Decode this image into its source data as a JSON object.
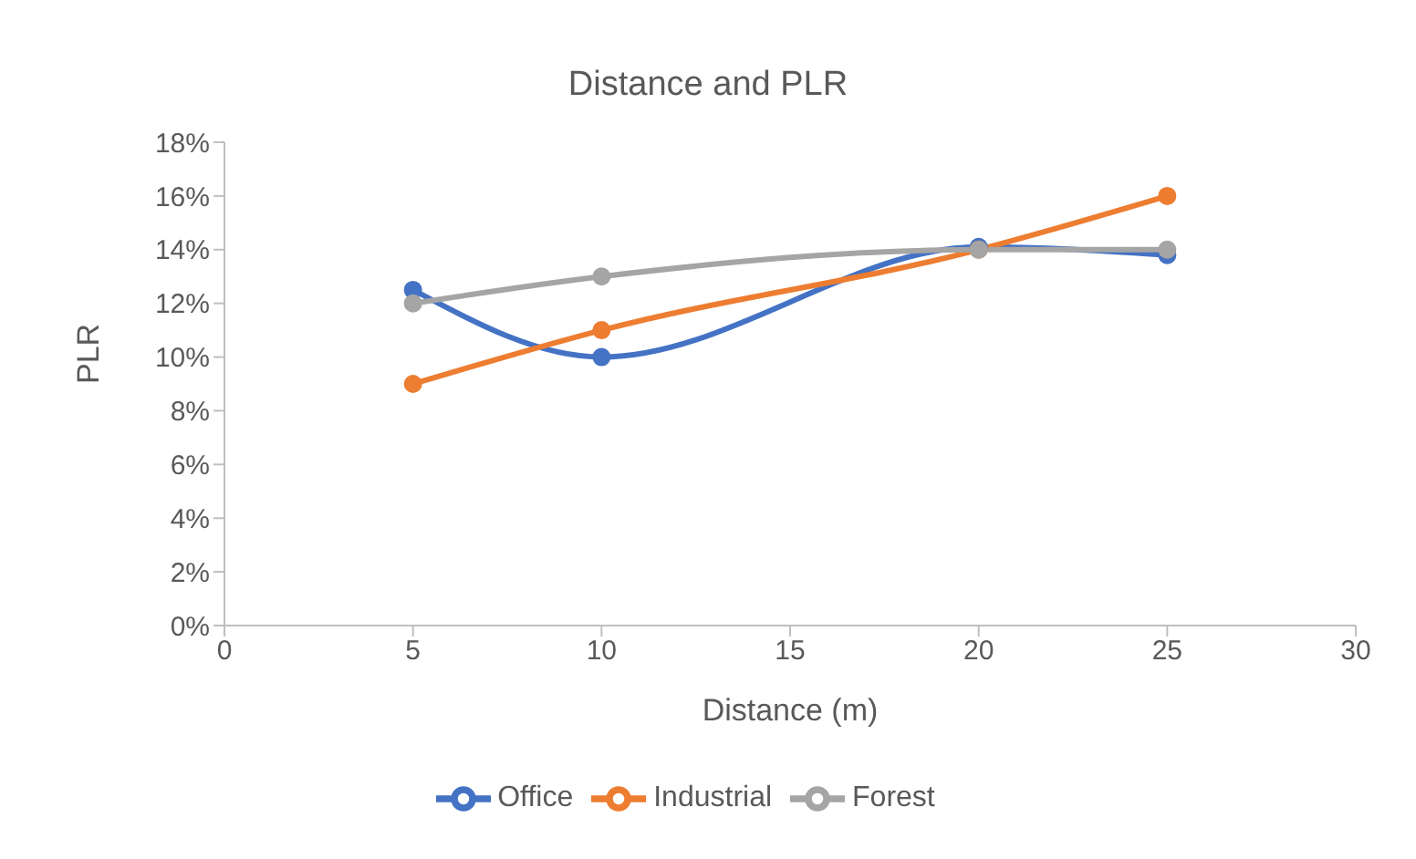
{
  "chart_data": {
    "type": "line",
    "title": "Distance and PLR",
    "xlabel": "Distance (m)",
    "ylabel": "PLR",
    "x": [
      5,
      10,
      20,
      25
    ],
    "series": [
      {
        "name": "Office",
        "color": "#4472c4",
        "values": [
          12.5,
          10,
          14.1,
          13.8
        ]
      },
      {
        "name": "Industrial",
        "color": "#ed7d31",
        "values": [
          9,
          11,
          14,
          16
        ]
      },
      {
        "name": "Forest",
        "color": "#a5a5a5",
        "values": [
          12,
          13,
          14,
          14
        ]
      }
    ],
    "xlim": [
      0,
      30
    ],
    "xticks": [
      0,
      5,
      10,
      15,
      20,
      25,
      30
    ],
    "ylim": [
      0,
      18
    ],
    "yticks": [
      {
        "value": 0,
        "label": "0%"
      },
      {
        "value": 2,
        "label": "2%"
      },
      {
        "value": 4,
        "label": "4%"
      },
      {
        "value": 6,
        "label": "6%"
      },
      {
        "value": 8,
        "label": "8%"
      },
      {
        "value": 10,
        "label": "10%"
      },
      {
        "value": 12,
        "label": "12%"
      },
      {
        "value": 14,
        "label": "14%"
      },
      {
        "value": 16,
        "label": "16%"
      },
      {
        "value": 18,
        "label": "18%"
      }
    ],
    "grid": false,
    "legend": "bottom",
    "marker": "circle",
    "line_style": "solid"
  }
}
